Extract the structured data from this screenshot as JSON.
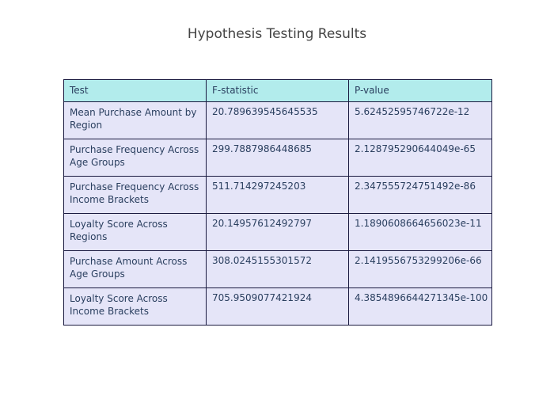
{
  "chart_data": {
    "type": "table",
    "title": "Hypothesis Testing Results",
    "columns": [
      "Test",
      "F-statistic",
      "P-value"
    ],
    "rows": [
      [
        "Mean Purchase Amount by Region",
        "20.789639545645535",
        "5.62452595746722e-12"
      ],
      [
        "Purchase Frequency Across Age Groups",
        "299.7887986448685",
        "2.128795290644049e-65"
      ],
      [
        "Purchase Frequency Across Income Brackets",
        "511.714297245203",
        "2.347555724751492e-86"
      ],
      [
        "Loyalty Score Across Regions",
        "20.14957612492797",
        "1.1890608664656023e-11"
      ],
      [
        "Purchase Amount Across Age Groups",
        "308.0245155301572",
        "2.1419556753299206e-66"
      ],
      [
        "Loyalty Score Across Income Brackets",
        "705.9509077421924",
        "4.3854896644271345e-100"
      ]
    ],
    "header_color": "#b2ecec",
    "cell_color": "#e5e5f8",
    "border_color": "#1a1a40"
  }
}
